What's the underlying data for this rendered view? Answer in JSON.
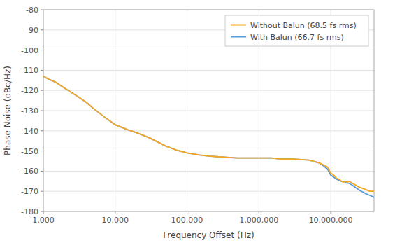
{
  "chart_data": {
    "type": "line",
    "xlabel": "Frequency Offset (Hz)",
    "ylabel": "Phase Noise (dBc/Hz)",
    "log": "x",
    "grid": true,
    "legend": "upper-right",
    "xlim": [
      1000,
      40000000
    ],
    "ylim": [
      -180,
      -80
    ],
    "xticks": [
      {
        "value": 1000,
        "label": "1,000"
      },
      {
        "value": 10000,
        "label": "10,000"
      },
      {
        "value": 100000,
        "label": "100,000"
      },
      {
        "value": 1000000,
        "label": "1,000,000"
      },
      {
        "value": 10000000,
        "label": "10,000,000"
      }
    ],
    "yticks": [
      -180,
      -170,
      -160,
      -150,
      -140,
      -130,
      -120,
      -110,
      -100,
      -90,
      -80
    ],
    "x": [
      1000,
      1200,
      1500,
      2000,
      3000,
      4000,
      5000,
      7000,
      10000,
      15000,
      20000,
      30000,
      50000,
      70000,
      100000,
      150000,
      200000,
      300000,
      500000,
      700000,
      1000000,
      1500000,
      2000000,
      3000000,
      5000000,
      7000000,
      8000000,
      9000000,
      10000000,
      11000000,
      12000000,
      13000000,
      14000000,
      15000000,
      16000000,
      17000000,
      18000000,
      20000000,
      25000000,
      30000000,
      35000000,
      40000000
    ],
    "series": [
      {
        "name": "Without Balun (68.5 fs rms)",
        "color": "#F5A623",
        "values": [
          -113,
          -114.5,
          -116,
          -119,
          -123,
          -126,
          -129,
          -133,
          -137,
          -139.5,
          -141,
          -143.5,
          -147.5,
          -149.5,
          -151,
          -152,
          -152.5,
          -153,
          -153.5,
          -153.5,
          -153.5,
          -153.5,
          -154,
          -154,
          -154.5,
          -156,
          -157,
          -158,
          -161,
          -162,
          -163.5,
          -164,
          -165,
          -165.5,
          -165,
          -165.5,
          -165,
          -166,
          -168,
          -169,
          -170,
          -170
        ]
      },
      {
        "name": "With Balun (66.7 fs rms)",
        "color": "#5B9BD5",
        "values": [
          -113,
          -114.5,
          -116,
          -119,
          -123,
          -126,
          -129,
          -133,
          -137,
          -139.5,
          -141,
          -143.5,
          -147.5,
          -149.5,
          -151,
          -152,
          -152.5,
          -153,
          -153.5,
          -153.5,
          -153.5,
          -153.5,
          -154,
          -154,
          -154.5,
          -156,
          -157.5,
          -159,
          -162,
          -163,
          -164,
          -164.5,
          -165,
          -165,
          -165.5,
          -166,
          -166,
          -167,
          -169.5,
          -171,
          -172,
          -173
        ]
      }
    ]
  }
}
